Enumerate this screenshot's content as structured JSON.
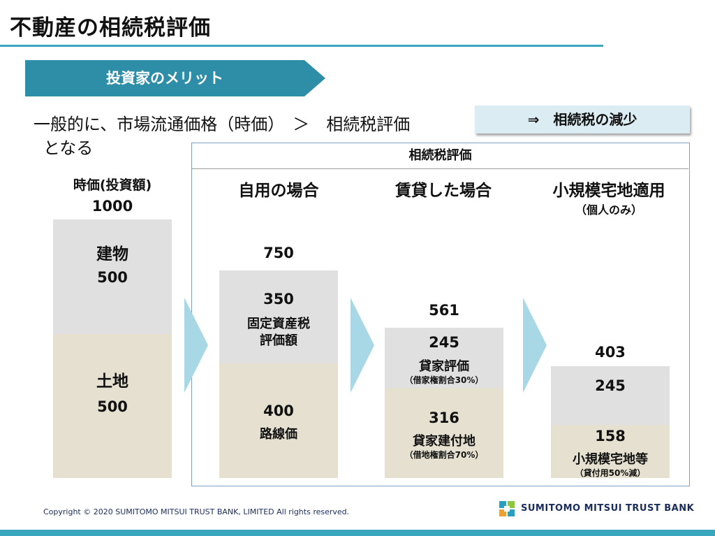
{
  "title": "不動産の相続税評価",
  "banner": "投資家のメリット",
  "statement": {
    "line1": "一般的に、市場流通価格（時価）　＞　相続税評価",
    "line2": "となる"
  },
  "result": "⇒　相続税の減少",
  "frame_title": "相続税評価",
  "market": {
    "heading": "時価(投資額)",
    "total": "1000",
    "building_label": "建物",
    "building_value": "500",
    "land_label": "土地",
    "land_value": "500"
  },
  "self_use": {
    "heading": "自用の場合",
    "total": "750",
    "building_value": "350",
    "building_label_1": "固定資産税",
    "building_label_2": "評価額",
    "land_value": "400",
    "land_label": "路線価"
  },
  "rental": {
    "heading": "賃貸した場合",
    "total": "561",
    "building_value": "245",
    "building_label": "貸家評価",
    "building_note": "（借家権割合30%）",
    "land_value": "316",
    "land_label": "貸家建付地",
    "land_note": "（借地権割合70%）"
  },
  "small_scale": {
    "heading": "小規模宅地適用",
    "subheading": "（個人のみ）",
    "total": "403",
    "building_value": "245",
    "land_value": "158",
    "land_label": "小規模宅地等",
    "land_note": "（貸付用50%減）"
  },
  "footer": {
    "copyright": "Copyright © 2020 SUMITOMO MITSUI TRUST BANK, LIMITED All rights reserved.",
    "logo_text": "SUMITOMO MITSUI TRUST BANK"
  },
  "colors": {
    "accent": "#3aa6bd",
    "banner": "#2f8ea7",
    "building_bar": "#e0e0e0",
    "land_bar": "#e5e0cf",
    "arrow": "#a8d8e6",
    "result_box": "#dcecf3"
  }
}
